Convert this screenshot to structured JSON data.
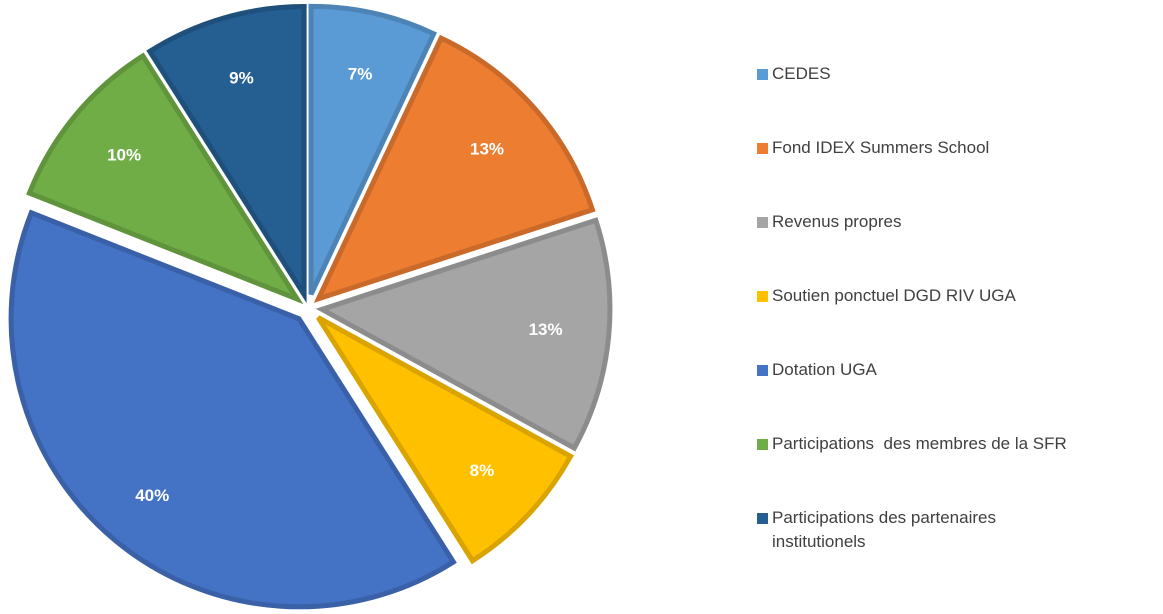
{
  "chart_data": {
    "type": "pie",
    "categories": [
      "CEDES",
      "Fond IDEX Summers School",
      "Revenus propres",
      "Soutien ponctuel DGD RIV UGA",
      "Dotation UGA",
      "Participations  des membres de la SFR",
      "Participations des partenaires institutionels"
    ],
    "values": [
      7,
      13,
      13,
      8,
      40,
      10,
      9
    ],
    "value_labels": [
      "7%",
      "13%",
      "13%",
      "8%",
      "40%",
      "10%",
      "9%"
    ],
    "colors": [
      "#5b9bd5",
      "#ed7d31",
      "#a5a5a5",
      "#ffc000",
      "#4472c4",
      "#70ad47",
      "#255e91"
    ],
    "legend": "right"
  }
}
